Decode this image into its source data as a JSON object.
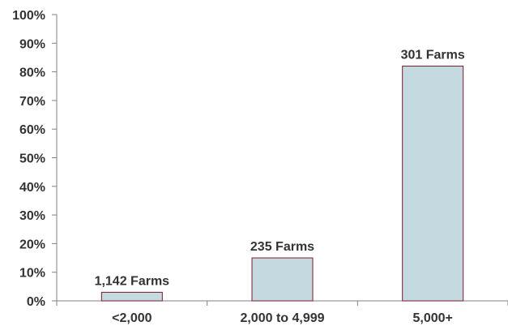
{
  "chart_data": {
    "type": "bar",
    "categories": [
      "<2,000",
      "2,000 to 4,999",
      "5,000+"
    ],
    "values": [
      3,
      15,
      82
    ],
    "data_labels": [
      "1,142 Farms",
      "235 Farms",
      "301 Farms"
    ],
    "y_ticks": [
      "0%",
      "10%",
      "20%",
      "30%",
      "40%",
      "50%",
      "60%",
      "70%",
      "80%",
      "90%",
      "100%"
    ],
    "ylim": [
      0,
      100
    ],
    "grid": false,
    "legend": "none",
    "colors": {
      "bar_fill": "#c5d9e1",
      "bar_stroke": "#7a1a2e",
      "axis": "#808080",
      "text": "#333333"
    }
  }
}
